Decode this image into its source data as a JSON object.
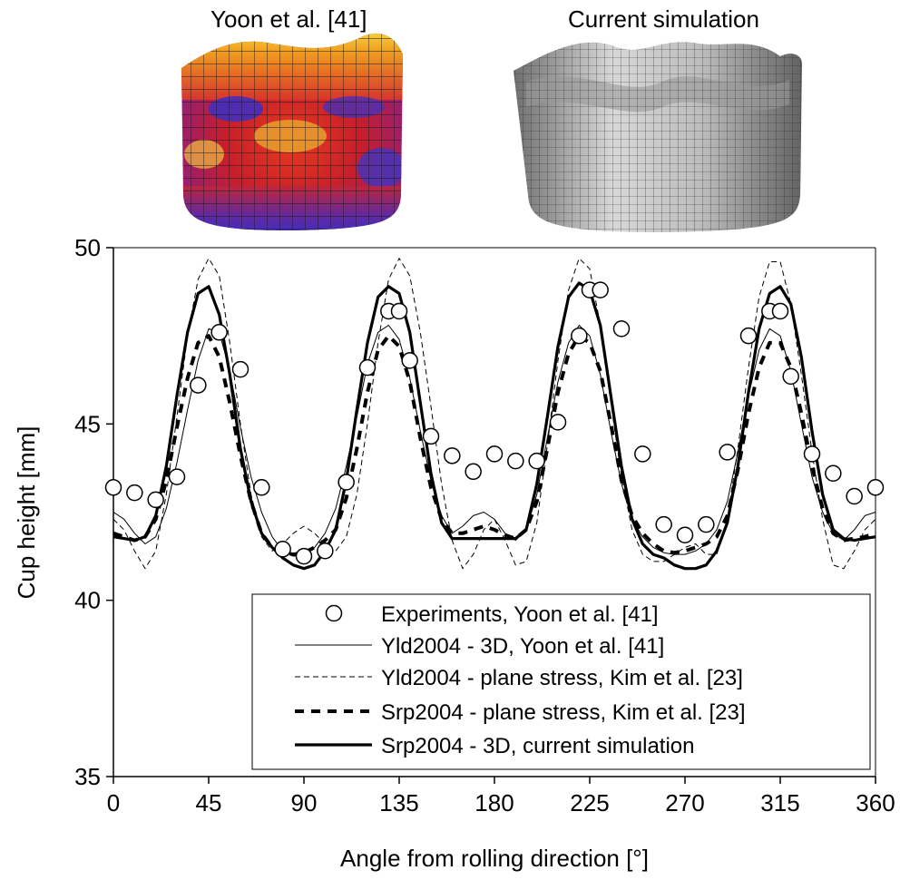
{
  "images": {
    "left_caption": "Yoon et al. [41]",
    "right_caption": "Current simulation"
  },
  "chart_data": {
    "type": "line",
    "xlabel": "Angle from rolling direction [°]",
    "ylabel": "Cup height [mm]",
    "xlim": [
      0,
      360
    ],
    "ylim": [
      35,
      50
    ],
    "xticks": [
      0,
      45,
      90,
      135,
      180,
      225,
      270,
      315,
      360
    ],
    "yticks": [
      35,
      40,
      45,
      50
    ],
    "grid": false,
    "legend_position": "bottom-right",
    "series": [
      {
        "name": "Experiments, Yoon et al. [41]",
        "style": "markers",
        "marker": "open-circle",
        "x": [
          0,
          10,
          20,
          30,
          40,
          50,
          60,
          70,
          80,
          90,
          100,
          110,
          120,
          130,
          135,
          140,
          150,
          160,
          170,
          180,
          190,
          200,
          210,
          220,
          225,
          230,
          240,
          250,
          260,
          270,
          280,
          290,
          300,
          310,
          315,
          320,
          330,
          340,
          350,
          360
        ],
        "y": [
          43.2,
          43.05,
          42.85,
          43.5,
          46.1,
          47.6,
          46.55,
          43.2,
          41.45,
          41.25,
          41.4,
          43.35,
          46.6,
          48.2,
          48.2,
          46.8,
          44.65,
          44.1,
          43.65,
          44.15,
          43.95,
          43.95,
          45.05,
          47.5,
          48.8,
          48.8,
          47.7,
          44.15,
          42.15,
          41.85,
          42.15,
          44.2,
          47.5,
          48.2,
          48.2,
          46.35,
          44.15,
          43.6,
          42.95,
          43.2
        ]
      },
      {
        "name": "Yld2004 - 3D, Yoon et al. [41]",
        "style": "solid-thin",
        "x": [
          0,
          5,
          10,
          15,
          20,
          25,
          30,
          35,
          40,
          45,
          50,
          55,
          60,
          65,
          70,
          75,
          80,
          85,
          90,
          95,
          100,
          105,
          110,
          115,
          120,
          125,
          130,
          135,
          140,
          145,
          150,
          155,
          160,
          165,
          170,
          175,
          180,
          185,
          190,
          195,
          200,
          205,
          210,
          215,
          220,
          225,
          230,
          235,
          240,
          245,
          250,
          255,
          260,
          265,
          270,
          275,
          280,
          285,
          290,
          295,
          300,
          305,
          310,
          315,
          320,
          325,
          330,
          335,
          340,
          345,
          350,
          355,
          360
        ],
        "y": [
          42.5,
          42.3,
          41.9,
          41.6,
          41.8,
          42.6,
          43.9,
          45.4,
          46.8,
          47.7,
          47.6,
          46.5,
          44.9,
          43.5,
          42.5,
          41.8,
          41.4,
          41.25,
          41.3,
          41.5,
          41.9,
          42.6,
          43.8,
          45.2,
          46.7,
          47.6,
          47.8,
          47.4,
          46.3,
          44.8,
          43.4,
          42.4,
          41.9,
          42.1,
          42.4,
          42.5,
          42.3,
          41.9,
          41.7,
          42.0,
          43.0,
          44.6,
          46.2,
          47.3,
          47.8,
          47.5,
          46.4,
          44.8,
          43.3,
          42.3,
          41.8,
          41.5,
          41.35,
          41.3,
          41.3,
          41.4,
          41.6,
          42.0,
          42.8,
          44.2,
          45.8,
          47.1,
          47.7,
          47.5,
          46.5,
          45.0,
          43.5,
          42.5,
          41.9,
          41.7,
          42.0,
          42.4,
          42.5
        ]
      },
      {
        "name": "Yld2004 - plane stress, Kim et al. [23]",
        "style": "dashed-thin",
        "x": [
          0,
          5,
          10,
          15,
          20,
          25,
          30,
          35,
          40,
          45,
          50,
          55,
          60,
          65,
          70,
          75,
          80,
          85,
          90,
          95,
          100,
          105,
          110,
          115,
          120,
          125,
          130,
          135,
          140,
          145,
          150,
          155,
          160,
          165,
          170,
          175,
          180,
          185,
          190,
          195,
          200,
          205,
          210,
          215,
          220,
          225,
          230,
          235,
          240,
          245,
          250,
          255,
          260,
          265,
          270,
          275,
          280,
          285,
          290,
          295,
          300,
          305,
          310,
          315,
          320,
          325,
          330,
          335,
          340,
          345,
          350,
          355,
          360
        ],
        "y": [
          42.3,
          42.0,
          41.4,
          40.9,
          41.4,
          43.0,
          45.2,
          47.5,
          49.1,
          49.7,
          49.2,
          47.3,
          45.0,
          43.0,
          41.8,
          41.4,
          41.6,
          41.9,
          42.1,
          41.9,
          41.6,
          41.4,
          41.8,
          43.0,
          45.0,
          47.3,
          49.1,
          49.7,
          49.2,
          47.6,
          45.5,
          43.3,
          41.7,
          40.9,
          41.3,
          42.0,
          42.3,
          41.7,
          41.0,
          41.1,
          42.2,
          44.4,
          46.8,
          48.8,
          49.7,
          49.4,
          47.8,
          45.6,
          43.5,
          42.0,
          41.3,
          41.1,
          41.1,
          41.3,
          41.5,
          41.6,
          41.3,
          41.3,
          42.3,
          44.3,
          46.6,
          48.6,
          49.6,
          49.6,
          48.4,
          46.4,
          44.2,
          42.3,
          41.0,
          40.9,
          41.4,
          42.0,
          42.3
        ]
      },
      {
        "name": "Srp2004 - plane stress, Kim et al. [23]",
        "style": "dashed-thick",
        "x": [
          0,
          5,
          10,
          15,
          20,
          25,
          30,
          35,
          40,
          45,
          50,
          55,
          60,
          65,
          70,
          75,
          80,
          85,
          90,
          95,
          100,
          105,
          110,
          115,
          120,
          125,
          130,
          135,
          140,
          145,
          150,
          155,
          160,
          165,
          170,
          175,
          180,
          185,
          190,
          195,
          200,
          205,
          210,
          215,
          220,
          225,
          230,
          235,
          240,
          245,
          250,
          255,
          260,
          265,
          270,
          275,
          280,
          285,
          290,
          295,
          300,
          305,
          310,
          315,
          320,
          325,
          330,
          335,
          340,
          345,
          350,
          355,
          360
        ],
        "y": [
          41.9,
          41.8,
          41.7,
          41.8,
          42.3,
          43.4,
          44.9,
          46.3,
          47.3,
          47.5,
          46.9,
          45.6,
          44.1,
          42.8,
          41.9,
          41.5,
          41.35,
          41.3,
          41.35,
          41.5,
          41.7,
          42.0,
          42.9,
          44.3,
          45.9,
          47.1,
          47.5,
          47.2,
          46.2,
          44.6,
          43.2,
          42.3,
          41.9,
          41.9,
          42.0,
          42.1,
          42.0,
          41.85,
          41.75,
          42.0,
          42.8,
          44.3,
          45.9,
          47.0,
          47.5,
          47.3,
          46.5,
          45.0,
          43.4,
          42.4,
          41.9,
          41.6,
          41.4,
          41.35,
          41.4,
          41.5,
          41.6,
          41.8,
          42.4,
          43.7,
          45.3,
          46.6,
          47.3,
          47.3,
          46.6,
          45.3,
          43.8,
          42.6,
          41.9,
          41.7,
          41.75,
          41.8,
          41.9
        ]
      },
      {
        "name": "Srp2004 - 3D, current simulation",
        "style": "solid-thick",
        "x": [
          0,
          5,
          10,
          15,
          20,
          25,
          30,
          35,
          40,
          45,
          50,
          55,
          60,
          65,
          70,
          75,
          80,
          85,
          90,
          95,
          100,
          105,
          110,
          115,
          120,
          125,
          130,
          135,
          140,
          145,
          150,
          155,
          160,
          165,
          170,
          175,
          180,
          185,
          190,
          195,
          200,
          205,
          210,
          215,
          220,
          225,
          230,
          235,
          240,
          245,
          250,
          255,
          260,
          265,
          270,
          275,
          280,
          285,
          290,
          295,
          300,
          305,
          310,
          315,
          320,
          325,
          330,
          335,
          340,
          345,
          350,
          355,
          360
        ],
        "y": [
          41.8,
          41.75,
          41.7,
          41.8,
          42.4,
          43.8,
          45.8,
          47.6,
          48.7,
          48.9,
          48.1,
          46.4,
          44.3,
          42.8,
          41.9,
          41.5,
          41.2,
          41.0,
          40.9,
          41.0,
          41.4,
          42.0,
          43.4,
          45.4,
          47.3,
          48.6,
          48.9,
          48.7,
          47.6,
          45.6,
          43.6,
          42.2,
          41.75,
          41.75,
          41.75,
          41.75,
          41.75,
          41.75,
          41.75,
          42.0,
          43.3,
          45.2,
          47.2,
          48.6,
          49.0,
          48.8,
          47.8,
          45.8,
          43.8,
          42.3,
          41.6,
          41.3,
          41.2,
          41.0,
          40.9,
          40.9,
          41.0,
          41.4,
          42.2,
          43.8,
          45.9,
          47.7,
          48.7,
          48.9,
          48.4,
          46.9,
          44.8,
          43.0,
          42.0,
          41.75,
          41.7,
          41.75,
          41.8
        ]
      }
    ]
  }
}
